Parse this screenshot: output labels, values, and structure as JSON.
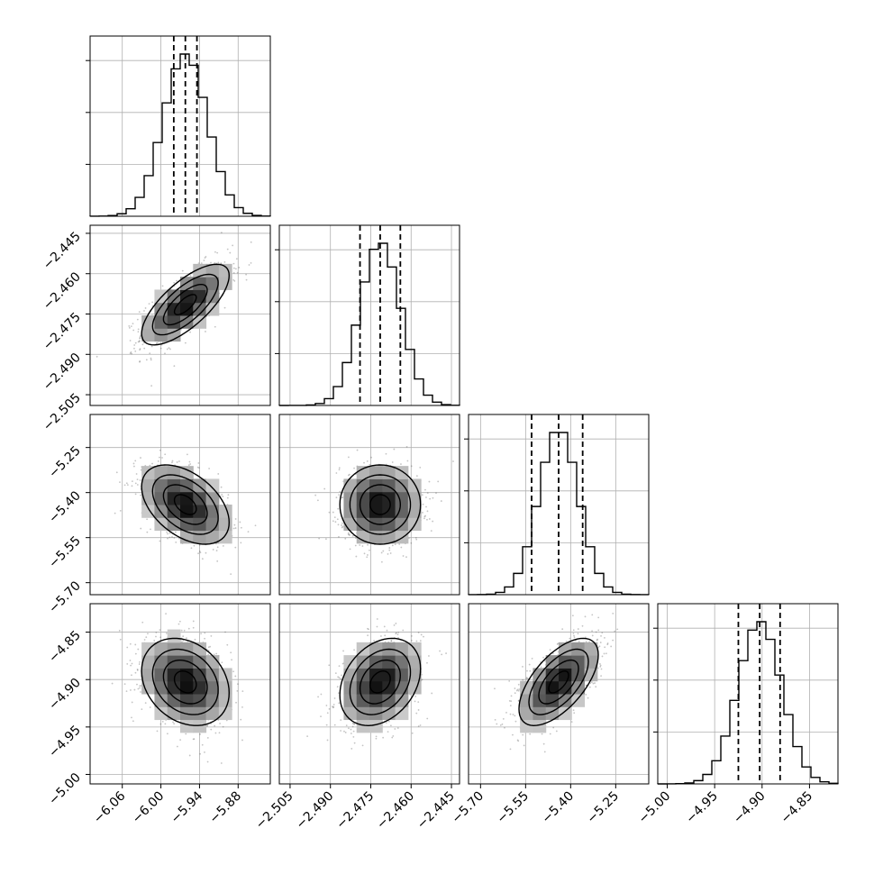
{
  "chart_data": {
    "type": "corner",
    "grid": true,
    "colors": {
      "ink": "#000000",
      "grid": "#b0b0b0",
      "scatter": "#555555"
    },
    "params": [
      {
        "id": "p0",
        "range": [
          -6.11,
          -5.83
        ],
        "ticks": [
          "-6.06",
          "-6.00",
          "-5.94",
          "-5.88"
        ],
        "tick_values": [
          -6.06,
          -6.0,
          -5.94,
          -5.88
        ],
        "mean": -5.962,
        "sigma": 0.034,
        "quantiles": [
          -5.98,
          -5.962,
          -5.944
        ]
      },
      {
        "id": "p1",
        "range": [
          -2.509,
          -2.442
        ],
        "ticks": [
          "-2.505",
          "-2.490",
          "-2.475",
          "-2.460",
          "-2.445"
        ],
        "tick_values": [
          -2.505,
          -2.49,
          -2.475,
          -2.46,
          -2.445
        ],
        "mean": -2.4715,
        "sigma": 0.0075,
        "quantiles": [
          -2.479,
          -2.4715,
          -2.464
        ]
      },
      {
        "id": "p2",
        "range": [
          -5.74,
          -5.14
        ],
        "ticks": [
          "-5.70",
          "-5.55",
          "-5.40",
          "-5.25"
        ],
        "tick_values": [
          -5.7,
          -5.55,
          -5.4,
          -5.25
        ],
        "mean": -5.44,
        "sigma": 0.066,
        "quantiles": [
          -5.53,
          -5.44,
          -5.36
        ]
      },
      {
        "id": "p3",
        "range": [
          -5.01,
          -4.82
        ],
        "ticks": [
          "-5.00",
          "-4.95",
          "-4.90",
          "-4.85"
        ],
        "tick_values": [
          -5.0,
          -4.95,
          -4.9,
          -4.85
        ],
        "mean": -4.9025,
        "sigma": 0.023,
        "quantiles": [
          -4.925,
          -4.9025,
          -4.881
        ]
      }
    ],
    "pairs": [
      {
        "row": 1,
        "col": 0,
        "corr": 0.72
      },
      {
        "row": 2,
        "col": 0,
        "corr": -0.45
      },
      {
        "row": 2,
        "col": 1,
        "corr": 0.0
      },
      {
        "row": 3,
        "col": 0,
        "corr": -0.25
      },
      {
        "row": 3,
        "col": 1,
        "corr": 0.3
      },
      {
        "row": 3,
        "col": 2,
        "corr": 0.62
      }
    ],
    "contour_levels_sigma": [
      0.5,
      1.0,
      1.5,
      2.0
    ],
    "histogram_bins": 20
  }
}
